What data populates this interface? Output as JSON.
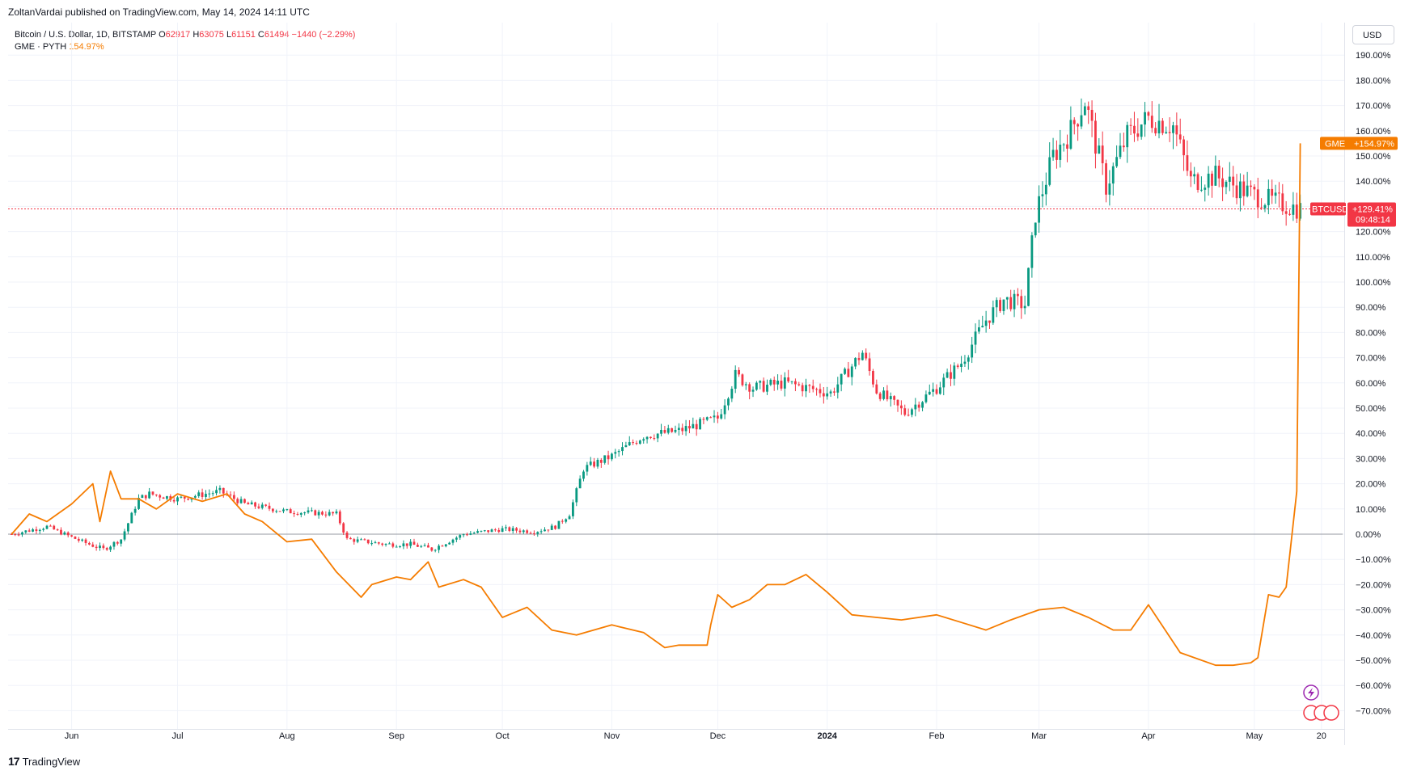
{
  "header": {
    "published": "ZoltanVardai published on TradingView.com, May 14, 2024 14:11 UTC"
  },
  "legend": {
    "btc": {
      "title": "Bitcoin / U.S. Dollar, 1D, BITSTAMP",
      "o_label": "O",
      "o": "62917",
      "h_label": "H",
      "h": "63075",
      "l_label": "L",
      "l": "61151",
      "c_label": "C",
      "c": "61494",
      "change": "−1440 (−2.29%)"
    },
    "gme": {
      "title": "GME · PYTH",
      "value": "154.97%"
    }
  },
  "currency_button": "USD",
  "price_tags": {
    "gme_label": "GME",
    "gme_value": "+154.97%",
    "btc_label": "BTCUSD",
    "btc_value": "+129.41%",
    "btc_countdown": "09:48:14"
  },
  "brand": {
    "name": "TradingView",
    "logo_glyph": "17"
  },
  "colors": {
    "btc_up": "#089981",
    "btc_down": "#f23645",
    "gme_line": "#f57c00",
    "btc_tag": "#f23645",
    "gme_tag": "#f57c00"
  },
  "chart_data": {
    "type": "line",
    "y_axis": {
      "unit": "percent",
      "ticks": [
        "190.00%",
        "180.00%",
        "170.00%",
        "160.00%",
        "150.00%",
        "140.00%",
        "130.00%",
        "120.00%",
        "110.00%",
        "100.00%",
        "90.00%",
        "80.00%",
        "70.00%",
        "60.00%",
        "50.00%",
        "40.00%",
        "30.00%",
        "20.00%",
        "10.00%",
        "0.00%",
        "−10.00%",
        "−20.00%",
        "−30.00%",
        "−40.00%",
        "−50.00%",
        "−60.00%",
        "−70.00%"
      ],
      "tick_values": [
        190,
        180,
        170,
        160,
        150,
        140,
        130,
        120,
        110,
        100,
        90,
        80,
        70,
        60,
        50,
        40,
        30,
        20,
        10,
        0,
        -10,
        -20,
        -30,
        -40,
        -50,
        -60,
        -70
      ],
      "range": [
        -78,
        200
      ]
    },
    "x_axis": {
      "range": [
        "2023-05-14",
        "2024-05-26"
      ],
      "ticks": [
        {
          "date": "2023-06-01",
          "label": "Jun"
        },
        {
          "date": "2023-07-01",
          "label": "Jul"
        },
        {
          "date": "2023-08-01",
          "label": "Aug"
        },
        {
          "date": "2023-09-01",
          "label": "Sep"
        },
        {
          "date": "2023-10-01",
          "label": "Oct"
        },
        {
          "date": "2023-11-01",
          "label": "Nov"
        },
        {
          "date": "2023-12-01",
          "label": "Dec"
        },
        {
          "date": "2024-01-01",
          "label": "2024"
        },
        {
          "date": "2024-02-01",
          "label": "Feb"
        },
        {
          "date": "2024-03-01",
          "label": "Mar"
        },
        {
          "date": "2024-04-01",
          "label": "Apr"
        },
        {
          "date": "2024-05-01",
          "label": "May"
        },
        {
          "date": "2024-05-20",
          "label": "20"
        }
      ]
    },
    "series": [
      {
        "name": "BTCUSD",
        "kind": "candles",
        "x": [
          "2023-05-15",
          "2023-05-25",
          "2023-06-04",
          "2023-06-10",
          "2023-06-15",
          "2023-06-20",
          "2023-06-23",
          "2023-07-01",
          "2023-07-13",
          "2023-07-20",
          "2023-08-01",
          "2023-08-15",
          "2023-08-18",
          "2023-08-29",
          "2023-09-05",
          "2023-09-11",
          "2023-09-20",
          "2023-10-01",
          "2023-10-10",
          "2023-10-16",
          "2023-10-20",
          "2023-10-24",
          "2023-11-01",
          "2023-11-10",
          "2023-11-20",
          "2023-12-01",
          "2023-12-06",
          "2023-12-11",
          "2023-12-20",
          "2024-01-02",
          "2024-01-11",
          "2024-01-15",
          "2024-01-23",
          "2024-02-01",
          "2024-02-08",
          "2024-02-15",
          "2024-02-20",
          "2024-02-26",
          "2024-02-29",
          "2024-03-05",
          "2024-03-10",
          "2024-03-14",
          "2024-03-20",
          "2024-03-26",
          "2024-04-01",
          "2024-04-08",
          "2024-04-13",
          "2024-04-20",
          "2024-04-30",
          "2024-05-06",
          "2024-05-14"
        ],
        "values": [
          0,
          3,
          -3,
          -6,
          -2,
          14,
          16,
          14,
          17,
          12,
          9,
          8,
          -2,
          -4,
          -4,
          -6,
          0,
          2,
          1,
          3,
          8,
          26,
          31,
          39,
          41,
          46,
          63,
          58,
          60,
          56,
          72,
          57,
          48,
          58,
          68,
          85,
          93,
          91,
          127,
          150,
          160,
          172,
          138,
          158,
          165,
          162,
          140,
          142,
          135,
          132,
          129
        ]
      },
      {
        "name": "GME",
        "kind": "line",
        "x": [
          "2023-05-15",
          "2023-05-20",
          "2023-05-25",
          "2023-06-01",
          "2023-06-07",
          "2023-06-09",
          "2023-06-12",
          "2023-06-15",
          "2023-06-20",
          "2023-06-25",
          "2023-07-01",
          "2023-07-08",
          "2023-07-15",
          "2023-07-20",
          "2023-07-25",
          "2023-08-01",
          "2023-08-08",
          "2023-08-15",
          "2023-08-22",
          "2023-08-25",
          "2023-09-01",
          "2023-09-05",
          "2023-09-10",
          "2023-09-13",
          "2023-09-20",
          "2023-09-25",
          "2023-10-01",
          "2023-10-08",
          "2023-10-15",
          "2023-10-22",
          "2023-11-01",
          "2023-11-10",
          "2023-11-16",
          "2023-11-20",
          "2023-11-28",
          "2023-11-29",
          "2023-12-01",
          "2023-12-05",
          "2023-12-10",
          "2023-12-15",
          "2023-12-20",
          "2023-12-26",
          "2024-01-01",
          "2024-01-08",
          "2024-01-15",
          "2024-01-22",
          "2024-02-01",
          "2024-02-08",
          "2024-02-15",
          "2024-02-22",
          "2024-03-01",
          "2024-03-08",
          "2024-03-15",
          "2024-03-22",
          "2024-03-27",
          "2024-04-01",
          "2024-04-10",
          "2024-04-20",
          "2024-04-25",
          "2024-04-30",
          "2024-05-02",
          "2024-05-05",
          "2024-05-08",
          "2024-05-10",
          "2024-05-13",
          "2024-05-14"
        ],
        "values": [
          0,
          8,
          5,
          12,
          20,
          5,
          25,
          14,
          14,
          10,
          16,
          13,
          16,
          8,
          5,
          -3,
          -2,
          -15,
          -25,
          -20,
          -17,
          -18,
          -11,
          -21,
          -18,
          -21,
          -33,
          -29,
          -38,
          -40,
          -36,
          -39,
          -45,
          -44,
          -44,
          -36,
          -24,
          -29,
          -26,
          -20,
          -20,
          -16,
          -23,
          -32,
          -33,
          -34,
          -32,
          -35,
          -38,
          -34,
          -30,
          -29,
          -33,
          -38,
          -38,
          -28,
          -47,
          -52,
          -52,
          -51,
          -49,
          -24,
          -25,
          -21,
          17,
          155
        ]
      }
    ]
  }
}
